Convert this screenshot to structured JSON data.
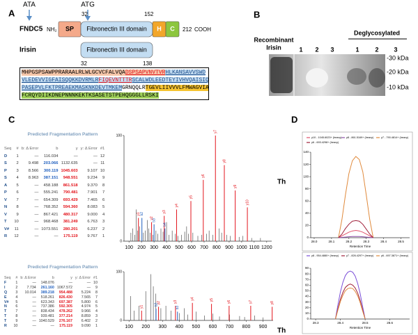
{
  "panel_labels": [
    "A",
    "B",
    "C",
    "D"
  ],
  "schematic": {
    "markers": [
      "ATA",
      "ATG"
    ],
    "fndc5": {
      "name": "FNDC5",
      "nterm": "NH₂",
      "positions": [
        32,
        152
      ],
      "length": 212,
      "cterm": "COOH",
      "domains": [
        {
          "label": "SP",
          "color": "#f4a98a"
        },
        {
          "label": "Fibronectin III domain",
          "color": "#c3ddf2"
        },
        {
          "label": "H",
          "color": "#f2a62a"
        },
        {
          "label": "C",
          "color": "#8cc63e"
        }
      ]
    },
    "irisin": {
      "name": "Irisin",
      "domain": "Fibronectin III domain",
      "color": "#c3ddf2",
      "positions": [
        32,
        138
      ]
    }
  },
  "sequence": [
    [
      {
        "text": "MHPGSPSAWPPRARAALRLWLGCVCFALVQA",
        "bg": "#f6c6a9"
      },
      {
        "text": "DSPSAPVNVTVR",
        "bg": "#f6c6a9",
        "color": "#e3141c",
        "underline": true
      },
      {
        "text": "HLKANSAVVSWD",
        "bg": "#c3ddf2",
        "color": "#1f4e8c",
        "underline": true
      }
    ],
    [
      {
        "text": "VLEDEVVIGFAISQQKKDVRMLR",
        "bg": "#c3ddf2",
        "color": "#1f4e8c",
        "underline": true
      },
      {
        "text": "FIQEVNTTTR",
        "bg": "#c3ddf2",
        "color": "#e3141c",
        "underline": true
      },
      {
        "text": "SCALWDLEEDTEYIVHVQAISIQGQS",
        "bg": "#c3ddf2",
        "color": "#1f4e8c",
        "underline": true
      }
    ],
    [
      {
        "text": "PASEPVLFKTPREAEKMASKNKDEVTMKEM",
        "bg": "#c3ddf2",
        "color": "#1f4e8c",
        "underline": true
      },
      {
        "text": "GRNQQLR",
        "bg": "#ffffff"
      },
      {
        "text": "TGEVLIIVVVLFMWAGVIAL",
        "bg": "#f6c431"
      }
    ],
    [
      {
        "text": "FCRQYDIIKDNEPNNNKEKTKSASETSTPEHQGGGLLRSKI",
        "bg": "#9fd05a"
      }
    ]
  ],
  "blot": {
    "sample_label": [
      "Recombinant",
      "Irisin"
    ],
    "group_label": "Deglycosylated",
    "lanes": [
      "1",
      "2",
      "3",
      "1",
      "2",
      "3"
    ],
    "markers": [
      "-30 kDa",
      "-20 kDa",
      "-10 kDa"
    ]
  },
  "fragmentation": [
    {
      "title": "Predicted Fragmentation Pattern",
      "header": [
        "Seq",
        "#",
        "b: Δ Error",
        "b",
        "y",
        "y: Δ Error",
        "#1"
      ],
      "rows": [
        [
          "D",
          "1",
          "—",
          "116.034",
          "—",
          "—",
          "12"
        ],
        [
          "S",
          "2",
          "9.498",
          "203.066",
          "1132.635",
          "—",
          "11"
        ],
        [
          "P",
          "3",
          "8.566",
          "300.119",
          "1045.603",
          "9.107",
          "10"
        ],
        [
          "S",
          "4",
          "8.963",
          "387.151",
          "948.551",
          "9.234",
          "9"
        ],
        [
          "A",
          "5",
          "—",
          "458.188",
          "861.518",
          "9.370",
          "8"
        ],
        [
          "P",
          "6",
          "—",
          "555.241",
          "790.481",
          "7.901",
          "7"
        ],
        [
          "V",
          "7",
          "—",
          "654.309",
          "693.429",
          "7.465",
          "6"
        ],
        [
          "N",
          "8",
          "—",
          "768.352",
          "594.360",
          "8.083",
          "5"
        ],
        [
          "V",
          "9",
          "—",
          "867.421",
          "480.317",
          "9.000",
          "4"
        ],
        [
          "T",
          "10",
          "—",
          "968.468",
          "381.249",
          "6.763",
          "3"
        ],
        [
          "V#",
          "11",
          "—",
          "1073.551",
          "280.201",
          "6.237",
          "2"
        ],
        [
          "R",
          "12",
          "—",
          "—",
          "175.119",
          "9.767",
          "1"
        ]
      ],
      "b_matched": [
        false,
        true,
        true,
        true,
        false,
        false,
        false,
        false,
        false,
        false,
        false,
        false
      ],
      "y_matched": [
        false,
        false,
        true,
        true,
        true,
        true,
        true,
        true,
        true,
        true,
        true,
        true
      ]
    },
    {
      "title": "Predicted Fragmentation Pattern",
      "header": [
        "Seq",
        "#",
        "b: Δ Error",
        "b",
        "y",
        "y: Δ Error",
        "#1"
      ],
      "rows": [
        [
          "F",
          "1",
          "—",
          "148.076",
          "—",
          "—",
          "10"
        ],
        [
          "I",
          "2",
          "7.734",
          "261.160",
          "1067.572",
          "—",
          "9"
        ],
        [
          "Q",
          "3",
          "10.014",
          "389.218",
          "954.488",
          "5.224",
          "8"
        ],
        [
          "E",
          "4",
          "—",
          "518.261",
          "826.430",
          "7.565",
          "7"
        ],
        [
          "V#",
          "5",
          "—",
          "623.343",
          "697.387",
          "5.800",
          "6"
        ],
        [
          "N",
          "6",
          "—",
          "737.386",
          "592.305",
          "4.974",
          "5"
        ],
        [
          "T",
          "7",
          "—",
          "838.434",
          "478.262",
          "9.966",
          "4"
        ],
        [
          "T",
          "8",
          "—",
          "939.481",
          "377.214",
          "8.859",
          "3"
        ],
        [
          "T",
          "9",
          "—",
          "1040.529",
          "276.167",
          "6.402",
          "2"
        ],
        [
          "R",
          "10",
          "—",
          "—",
          "175.119",
          "9.090",
          "1"
        ]
      ],
      "b_matched": [
        false,
        true,
        true,
        false,
        false,
        false,
        false,
        false,
        false,
        false
      ],
      "y_matched": [
        false,
        false,
        true,
        true,
        true,
        true,
        true,
        true,
        true,
        true
      ]
    }
  ],
  "th_labels": [
    "Th",
    "Th"
  ],
  "chart_data": [
    {
      "type": "spectrum",
      "xlim": [
        60,
        1240
      ],
      "xticks": [
        100,
        200,
        300,
        400,
        500,
        600,
        700,
        800,
        900,
        1000,
        1100,
        1200
      ],
      "ylim": [
        0,
        100
      ],
      "yticks": [
        0,
        100
      ],
      "series": [
        {
          "color": "#555555",
          "x": [
            115,
            130,
            147,
            158,
            170,
            186,
            215,
            230,
            246,
            258,
            270,
            290,
            315,
            330,
            355,
            372,
            400,
            420,
            445,
            470,
            490,
            520,
            545,
            560,
            575,
            610,
            650,
            680,
            720,
            740,
            770,
            820,
            840,
            880,
            910,
            980,
            1010,
            1080,
            1150
          ],
          "values": [
            8,
            12,
            6,
            30,
            10,
            14,
            8,
            10,
            20,
            12,
            8,
            6,
            10,
            7,
            12,
            9,
            18,
            6,
            10,
            7,
            5,
            6,
            9,
            14,
            7,
            8,
            5,
            6,
            7,
            10,
            6,
            12,
            8,
            6,
            5,
            4,
            5,
            3,
            3
          ]
        },
        {
          "color": "#e3141c",
          "x": [
            175.119,
            280.201,
            381.249,
            480.317,
            594.36,
            693.429,
            790.481,
            861.518,
            948.551,
            1045.603
          ],
          "values": [
            22,
            18,
            24,
            30,
            38,
            58,
            100,
            72,
            48,
            32
          ],
          "labels": [
            "y1",
            "y2",
            "y3",
            "y4",
            "y5",
            "y6",
            "y7",
            "y8",
            "y9",
            "y10"
          ]
        },
        {
          "color": "#1f5fbf",
          "x": [
            203.066,
            300.119,
            387.151
          ],
          "values": [
            22,
            16,
            12
          ],
          "labels": [
            "b2",
            "b3",
            "b4"
          ]
        }
      ]
    },
    {
      "type": "spectrum",
      "xlim": [
        70,
        960
      ],
      "xticks": [
        100,
        200,
        300,
        400,
        500,
        600,
        700,
        800,
        900
      ],
      "ylim": [
        0,
        100
      ],
      "yticks": [
        0,
        100
      ],
      "series": [
        {
          "color": "#555555",
          "x": [
            110,
            130,
            160,
            200,
            230,
            245,
            260,
            290,
            320,
            350,
            400,
            430,
            450,
            500,
            550,
            600,
            640,
            700,
            760,
            790,
            850,
            900
          ],
          "values": [
            50,
            20,
            30,
            60,
            95,
            70,
            55,
            25,
            30,
            20,
            15,
            25,
            12,
            18,
            10,
            14,
            8,
            12,
            9,
            7,
            10,
            6
          ]
        },
        {
          "color": "#e3141c",
          "x": [
            175.119,
            276.167,
            377.214,
            478.262,
            592.305,
            697.387,
            826.43,
            954.488
          ],
          "values": [
            20,
            28,
            30,
            36,
            34,
            30,
            30,
            28
          ],
          "labels": [
            "y1",
            "y2",
            "y3",
            "y4",
            "y5",
            "y6",
            "y7",
            "y8"
          ]
        },
        {
          "color": "#1f5fbf",
          "x": [
            261.16,
            389.218
          ],
          "values": [
            24,
            18
          ],
          "labels": [
            "b2",
            "b3"
          ]
        }
      ]
    },
    {
      "type": "line",
      "xlabel": "Retention Time",
      "xlim": [
        27.98,
        28.55
      ],
      "ylim": [
        0,
        140
      ],
      "xticks": [
        {
          "value": 28,
          "label": "28.0"
        },
        28.1,
        28.2,
        28.3,
        28.4,
        28.5
      ],
      "yticks": [
        0,
        20,
        40,
        60,
        80,
        100,
        120,
        140
      ],
      "x": [
        28.14,
        28.16,
        28.18,
        28.2,
        28.22,
        28.24,
        28.26,
        28.28,
        28.3,
        28.32,
        28.34
      ],
      "series": [
        {
          "name": "y10 - 1045.6023+ (heavy)",
          "color": "#e0506a",
          "values": [
            0,
            3,
            6,
            9,
            11,
            12,
            11,
            9,
            6,
            3,
            0
          ]
        },
        {
          "name": "y8 - 861.5169+ (heavy)",
          "color": "#8e4fa8",
          "values": [
            0,
            0.5,
            1,
            1.5,
            2,
            2,
            2,
            1.5,
            1,
            0.5,
            0
          ]
        },
        {
          "name": "y7 - 790.4814+ (heavy)",
          "color": "#e08a3c",
          "values": [
            0,
            30,
            70,
            105,
            126,
            133,
            128,
            108,
            70,
            30,
            0
          ]
        },
        {
          "name": "y6 - 693.4298+ (heavy)",
          "color": "#a0203a",
          "values": [
            0,
            6,
            15,
            22,
            27,
            28,
            27,
            22,
            14,
            6,
            0
          ]
        }
      ]
    },
    {
      "type": "line",
      "xlabel": "Retention Time",
      "xlim": [
        28.28,
        28.68
      ],
      "ylim": [
        0,
        90
      ],
      "xticks": [
        28.3,
        28.4,
        28.5,
        28.6
      ],
      "yticks": [
        0,
        10,
        20,
        30,
        40,
        50,
        60,
        70,
        80,
        90
      ],
      "x": [
        28.38,
        28.39,
        28.4,
        28.41,
        28.42,
        28.43,
        28.44,
        28.45,
        28.46,
        28.47,
        28.48,
        28.49,
        28.5
      ],
      "series": [
        {
          "name": "y8 - 954.4880+ (heavy)",
          "color": "#7b4fd8",
          "values": [
            0,
            25,
            48,
            65,
            77,
            83,
            85,
            83,
            76,
            63,
            45,
            22,
            0
          ]
        },
        {
          "name": "y7 - 826.4297+ (heavy)",
          "color": "#a0203a",
          "values": [
            0,
            18,
            35,
            47,
            56,
            60,
            62,
            60,
            55,
            46,
            33,
            16,
            0
          ]
        },
        {
          "name": "y6 - 697.3871+ (heavy)",
          "color": "#e08a3c",
          "values": [
            0,
            16,
            31,
            42,
            50,
            54,
            55,
            54,
            49,
            41,
            29,
            14,
            0
          ]
        }
      ]
    }
  ]
}
